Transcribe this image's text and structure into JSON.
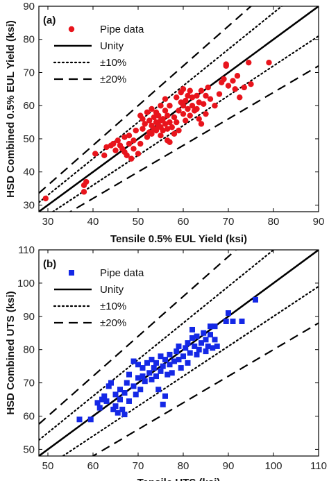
{
  "chart_data": [
    {
      "type": "scatter",
      "panel_label": "(a)",
      "xlabel": "Tensile 0.5% EUL Yield (ksi)",
      "ylabel": "HSD Combined 0.5% EUL Yield (ksi)",
      "xlim": [
        28,
        90
      ],
      "ylim": [
        28,
        90
      ],
      "xticks": [
        30,
        40,
        50,
        60,
        70,
        80,
        90
      ],
      "yticks": [
        30,
        40,
        50,
        60,
        70,
        80,
        90
      ],
      "grid": false,
      "legend_position": "top-left",
      "legend": [
        {
          "label": "Pipe data",
          "kind": "marker"
        },
        {
          "label": "Unity",
          "kind": "solid"
        },
        {
          "label": "±10%",
          "kind": "dotted"
        },
        {
          "label": "±20%",
          "kind": "dashed"
        }
      ],
      "reference_lines": [
        {
          "slope": 1.0,
          "style": "solid"
        },
        {
          "slope": 1.1,
          "style": "dotted"
        },
        {
          "slope": 0.9,
          "style": "dotted"
        },
        {
          "slope": 1.2,
          "style": "dashed"
        },
        {
          "slope": 0.8,
          "style": "dashed"
        }
      ],
      "series": [
        {
          "name": "Pipe data",
          "marker": "circle",
          "color": "#e8141c",
          "points": [
            [
              29.5,
              32
            ],
            [
              38,
              34
            ],
            [
              38,
              36
            ],
            [
              38.5,
              37
            ],
            [
              40.5,
              45.5
            ],
            [
              42.5,
              45
            ],
            [
              43,
              47.5
            ],
            [
              44,
              48
            ],
            [
              44.5,
              48.5
            ],
            [
              45,
              46.5
            ],
            [
              45.5,
              49.5
            ],
            [
              46,
              48
            ],
            [
              46.5,
              47
            ],
            [
              47,
              46
            ],
            [
              47,
              50.5
            ],
            [
              47.5,
              45
            ],
            [
              48,
              48.5
            ],
            [
              48,
              51
            ],
            [
              48.5,
              44
            ],
            [
              49,
              47
            ],
            [
              49,
              49.5
            ],
            [
              49.5,
              52.5
            ],
            [
              50,
              45.5
            ],
            [
              50.5,
              48.5
            ],
            [
              50.5,
              57
            ],
            [
              51,
              53
            ],
            [
              51,
              56
            ],
            [
              51.5,
              54.5
            ],
            [
              52,
              50.5
            ],
            [
              52,
              58
            ],
            [
              52.5,
              52
            ],
            [
              52.5,
              55.5
            ],
            [
              53,
              51.5
            ],
            [
              53,
              54
            ],
            [
              53,
              59
            ],
            [
              53.5,
              53
            ],
            [
              53.5,
              56.5
            ],
            [
              54,
              52.5
            ],
            [
              54,
              55
            ],
            [
              54,
              58
            ],
            [
              54.5,
              54
            ],
            [
              54.5,
              57
            ],
            [
              55,
              51
            ],
            [
              55,
              53.5
            ],
            [
              55,
              55.5
            ],
            [
              55,
              60
            ],
            [
              55.5,
              52.5
            ],
            [
              55.5,
              56
            ],
            [
              56,
              54.5
            ],
            [
              56,
              58.5
            ],
            [
              56,
              62
            ],
            [
              56.5,
              49.5
            ],
            [
              56.5,
              53
            ],
            [
              56.5,
              57
            ],
            [
              57,
              49
            ],
            [
              57,
              55
            ],
            [
              57,
              60
            ],
            [
              57.5,
              53.5
            ],
            [
              58,
              51.5
            ],
            [
              58,
              56.5
            ],
            [
              58.5,
              55
            ],
            [
              58.5,
              62.5
            ],
            [
              59,
              52.5
            ],
            [
              59,
              58.5
            ],
            [
              59.5,
              61
            ],
            [
              59.5,
              64
            ],
            [
              60,
              57.5
            ],
            [
              60,
              60
            ],
            [
              60,
              65
            ],
            [
              60.5,
              55.5
            ],
            [
              60.5,
              61.5
            ],
            [
              61,
              59
            ],
            [
              61,
              63
            ],
            [
              61.5,
              57
            ],
            [
              61.5,
              64.5
            ],
            [
              62,
              60
            ],
            [
              62,
              62.5
            ],
            [
              62.5,
              58.5
            ],
            [
              63,
              59
            ],
            [
              63,
              63
            ],
            [
              63.5,
              56
            ],
            [
              63.5,
              61
            ],
            [
              64,
              54.5
            ],
            [
              64,
              64.5
            ],
            [
              64.5,
              60.5
            ],
            [
              65,
              57.5
            ],
            [
              65,
              63
            ],
            [
              65.5,
              65.5
            ],
            [
              66,
              62
            ],
            [
              67,
              60
            ],
            [
              68,
              63.5
            ],
            [
              68.5,
              67
            ],
            [
              69,
              68
            ],
            [
              69.5,
              72
            ],
            [
              69.5,
              72.5
            ],
            [
              70,
              66
            ],
            [
              71,
              67.5
            ],
            [
              71.5,
              65
            ],
            [
              72,
              69
            ],
            [
              72.5,
              62.5
            ],
            [
              73.5,
              65.5
            ],
            [
              74.5,
              73
            ],
            [
              75,
              66.5
            ],
            [
              79,
              73
            ]
          ]
        }
      ]
    },
    {
      "type": "scatter",
      "panel_label": "(b)",
      "xlabel": "Tensile UTS (ksi)",
      "ylabel": "HSD Combined UTS (ksi)",
      "xlim": [
        48,
        110
      ],
      "ylim": [
        48,
        110
      ],
      "xticks": [
        50,
        60,
        70,
        80,
        90,
        100,
        110
      ],
      "yticks": [
        50,
        60,
        70,
        80,
        90,
        100,
        110
      ],
      "grid": false,
      "legend_position": "top-left",
      "legend": [
        {
          "label": "Pipe data",
          "kind": "marker"
        },
        {
          "label": "Unity",
          "kind": "solid"
        },
        {
          "label": "±10%",
          "kind": "dotted"
        },
        {
          "label": "±20%",
          "kind": "dashed"
        }
      ],
      "reference_lines": [
        {
          "slope": 1.0,
          "style": "solid"
        },
        {
          "slope": 1.1,
          "style": "dotted"
        },
        {
          "slope": 0.9,
          "style": "dotted"
        },
        {
          "slope": 1.2,
          "style": "dashed"
        },
        {
          "slope": 0.8,
          "style": "dashed"
        }
      ],
      "series": [
        {
          "name": "Pipe data",
          "marker": "square",
          "color": "#1428e6",
          "points": [
            [
              57,
              59
            ],
            [
              59.5,
              59
            ],
            [
              61,
              64
            ],
            [
              61.5,
              62.5
            ],
            [
              62,
              65
            ],
            [
              62.5,
              66
            ],
            [
              63,
              64.5
            ],
            [
              63.5,
              69
            ],
            [
              64,
              70
            ],
            [
              64.5,
              62
            ],
            [
              65,
              63
            ],
            [
              65,
              66.5
            ],
            [
              65.5,
              61
            ],
            [
              66,
              65
            ],
            [
              66,
              68
            ],
            [
              66.5,
              62
            ],
            [
              67,
              60.5
            ],
            [
              67,
              67
            ],
            [
              67.5,
              70
            ],
            [
              68,
              64.5
            ],
            [
              68,
              72.5
            ],
            [
              69,
              69
            ],
            [
              69,
              76.5
            ],
            [
              69.5,
              66.5
            ],
            [
              70,
              71.5
            ],
            [
              70,
              75.5
            ],
            [
              70.5,
              68
            ],
            [
              71,
              72
            ],
            [
              71,
              74.5
            ],
            [
              71.5,
              70.5
            ],
            [
              72,
              76
            ],
            [
              72.5,
              73
            ],
            [
              73,
              71
            ],
            [
              73,
              77
            ],
            [
              73.5,
              74.5
            ],
            [
              74,
              72
            ],
            [
              74,
              76
            ],
            [
              74.5,
              68
            ],
            [
              75,
              73.5
            ],
            [
              75,
              78
            ],
            [
              75.5,
              63.5
            ],
            [
              75.5,
              75
            ],
            [
              76,
              66
            ],
            [
              76,
              77
            ],
            [
              76.5,
              72.5
            ],
            [
              77,
              78.5
            ],
            [
              77,
              75.5
            ],
            [
              77.5,
              73
            ],
            [
              78,
              76.5
            ],
            [
              78.5,
              79.5
            ],
            [
              79,
              77
            ],
            [
              79,
              81
            ],
            [
              79.5,
              74.5
            ],
            [
              80,
              78
            ],
            [
              80.5,
              80.5
            ],
            [
              81,
              82
            ],
            [
              81,
              76
            ],
            [
              81.5,
              79
            ],
            [
              82,
              83.5
            ],
            [
              82,
              86
            ],
            [
              82.5,
              81
            ],
            [
              83,
              78.5
            ],
            [
              83,
              84
            ],
            [
              83.5,
              80
            ],
            [
              84,
              82
            ],
            [
              84.5,
              85
            ],
            [
              85,
              79.5
            ],
            [
              85,
              83
            ],
            [
              85.5,
              81
            ],
            [
              86,
              87
            ],
            [
              86,
              84.5
            ],
            [
              86.5,
              80.5
            ],
            [
              87,
              87
            ],
            [
              87,
              83
            ],
            [
              87.5,
              81
            ],
            [
              89.5,
              88.5
            ],
            [
              90,
              91
            ],
            [
              91,
              88.5
            ],
            [
              93,
              88.5
            ],
            [
              96,
              95
            ]
          ]
        }
      ]
    }
  ]
}
